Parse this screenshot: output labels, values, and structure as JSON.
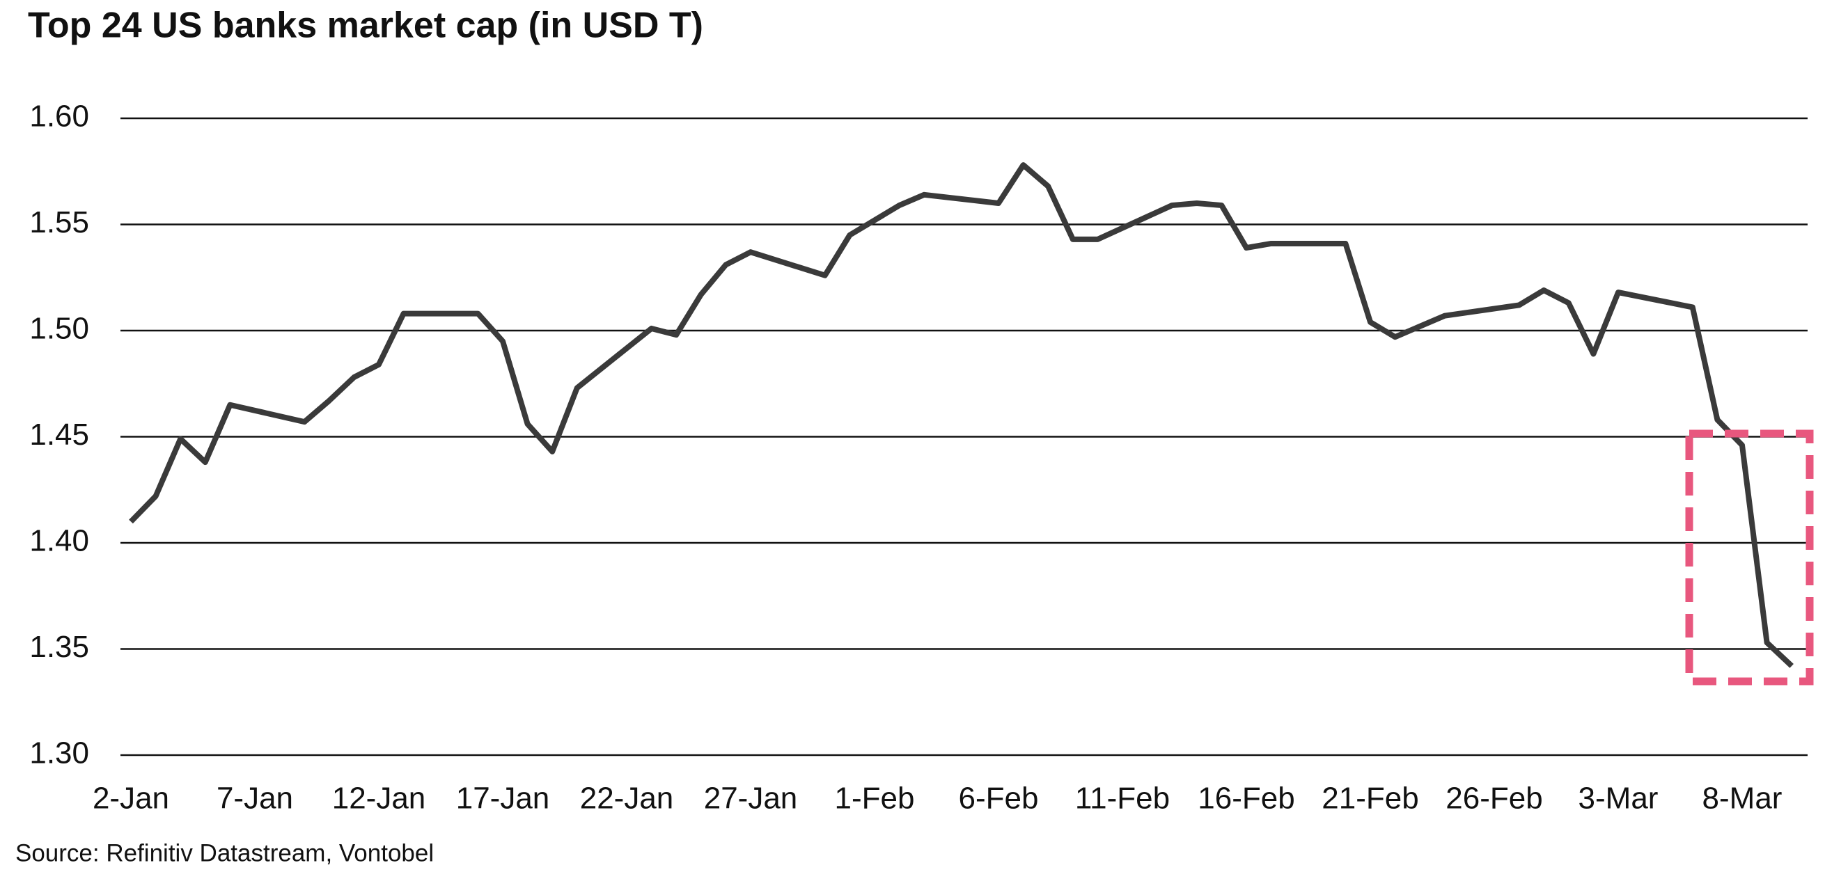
{
  "chart_data": {
    "type": "line",
    "title": "Top 24 US banks market cap (in USD T)",
    "source": "Source: Refinitiv Datastream, Vontobel",
    "x": [
      "2-Jan",
      "3-Jan",
      "4-Jan",
      "5-Jan",
      "6-Jan",
      "9-Jan",
      "10-Jan",
      "11-Jan",
      "12-Jan",
      "13-Jan",
      "16-Jan",
      "17-Jan",
      "18-Jan",
      "19-Jan",
      "20-Jan",
      "23-Jan",
      "24-Jan",
      "25-Jan",
      "26-Jan",
      "27-Jan",
      "30-Jan",
      "31-Jan",
      "1-Feb",
      "2-Feb",
      "3-Feb",
      "6-Feb",
      "7-Feb",
      "8-Feb",
      "9-Feb",
      "10-Feb",
      "13-Feb",
      "14-Feb",
      "15-Feb",
      "16-Feb",
      "17-Feb",
      "20-Feb",
      "21-Feb",
      "22-Feb",
      "24-Feb",
      "27-Feb",
      "28-Feb",
      "1-Mar",
      "2-Mar",
      "3-Mar",
      "6-Mar",
      "7-Mar",
      "8-Mar",
      "9-Mar",
      "10-Mar"
    ],
    "series": [
      {
        "name": "Market cap",
        "color": "#3a3a3a",
        "values": [
          1.41,
          1.422,
          1.449,
          1.438,
          1.465,
          1.457,
          1.467,
          1.478,
          1.484,
          1.508,
          1.508,
          1.495,
          1.456,
          1.443,
          1.473,
          1.501,
          1.498,
          1.517,
          1.531,
          1.537,
          1.526,
          1.545,
          1.552,
          1.559,
          1.564,
          1.56,
          1.578,
          1.568,
          1.543,
          1.543,
          1.559,
          1.56,
          1.559,
          1.539,
          1.541,
          1.541,
          1.504,
          1.497,
          1.507,
          1.512,
          1.519,
          1.513,
          1.489,
          1.518,
          1.511,
          1.458,
          1.446,
          1.353,
          1.342
        ]
      }
    ],
    "xticks": [
      "2-Jan",
      "7-Jan",
      "12-Jan",
      "17-Jan",
      "22-Jan",
      "27-Jan",
      "1-Feb",
      "6-Feb",
      "11-Feb",
      "16-Feb",
      "21-Feb",
      "26-Feb",
      "3-Mar",
      "8-Mar"
    ],
    "ylim": [
      1.3,
      1.6
    ],
    "yticks": [
      {
        "value": 1.3,
        "label": "1.30"
      },
      {
        "value": 1.35,
        "label": "1.35"
      },
      {
        "value": 1.4,
        "label": "1.40"
      },
      {
        "value": 1.45,
        "label": "1.45"
      },
      {
        "value": 1.5,
        "label": "1.50"
      },
      {
        "value": 1.55,
        "label": "1.55"
      },
      {
        "value": 1.6,
        "label": "1.60"
      }
    ],
    "grid": true
  }
}
